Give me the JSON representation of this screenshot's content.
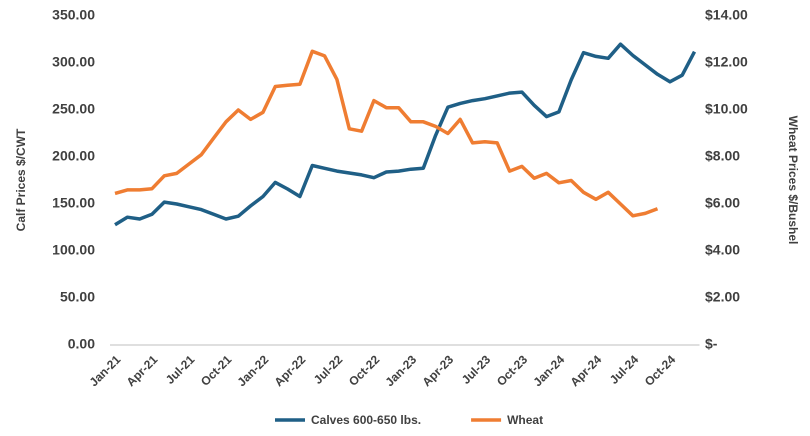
{
  "chart_data": {
    "type": "line",
    "y_label": "Calf Prices $/CWT",
    "y2_label": "Wheat Prices $/Bushel",
    "categories": [
      "Jan-21",
      null,
      null,
      "Apr-21",
      null,
      null,
      "Jul-21",
      null,
      null,
      "Oct-21",
      null,
      null,
      "Jan-22",
      null,
      null,
      "Apr-22",
      null,
      null,
      "Jul-22",
      null,
      null,
      "Oct-22",
      null,
      null,
      "Jan-23",
      null,
      null,
      "Apr-23",
      null,
      null,
      "Jul-23",
      null,
      null,
      "Oct-23",
      null,
      null,
      "Jan-24",
      null,
      null,
      "Apr-24",
      null,
      null,
      "Jul-24",
      null,
      null,
      "Oct-24",
      null,
      null
    ],
    "series": [
      {
        "name": "Calves 600-650 lbs.",
        "color": "#1f5f86",
        "axis": "y",
        "values": [
          128,
          136,
          134,
          139,
          152,
          150,
          147,
          144,
          139,
          134,
          137,
          148,
          158,
          173,
          166,
          158,
          191,
          188,
          185,
          183,
          181,
          178,
          184,
          185,
          187,
          188,
          223,
          253,
          257,
          260,
          262,
          265,
          268,
          269,
          255,
          243,
          248,
          282,
          311,
          307,
          305,
          320,
          308,
          298,
          288,
          280,
          287,
          312
        ]
      },
      {
        "name": "Wheat",
        "color": "#ef7d32",
        "axis": "y2",
        "values": [
          6.45,
          6.6,
          6.6,
          6.65,
          7.2,
          7.3,
          7.7,
          8.1,
          8.8,
          9.5,
          10.0,
          9.6,
          9.9,
          11.0,
          11.05,
          11.1,
          12.5,
          12.3,
          11.3,
          9.2,
          9.1,
          10.4,
          10.1,
          10.1,
          9.5,
          9.5,
          9.3,
          9.0,
          9.6,
          8.6,
          8.65,
          8.6,
          7.4,
          7.6,
          7.1,
          7.3,
          6.9,
          7.0,
          6.5,
          6.2,
          6.5,
          6.0,
          5.5,
          5.6,
          5.8,
          null,
          null,
          null
        ]
      }
    ],
    "ylim": [
      0,
      350
    ],
    "yticks": [
      {
        "value": 0,
        "label": "0.00"
      },
      {
        "value": 50,
        "label": "50.00"
      },
      {
        "value": 100,
        "label": "100.00"
      },
      {
        "value": 150,
        "label": "150.00"
      },
      {
        "value": 200,
        "label": "200.00"
      },
      {
        "value": 250,
        "label": "250.00"
      },
      {
        "value": 300,
        "label": "300.00"
      },
      {
        "value": 350,
        "label": "350.00"
      }
    ],
    "y2lim": [
      0,
      14
    ],
    "y2ticks": [
      {
        "value": 0,
        "label": "$-"
      },
      {
        "value": 2,
        "label": "$2.00"
      },
      {
        "value": 4,
        "label": "$4.00"
      },
      {
        "value": 6,
        "label": "$6.00"
      },
      {
        "value": 8,
        "label": "$8.00"
      },
      {
        "value": 10,
        "label": "$10.00"
      },
      {
        "value": 12,
        "label": "$12.00"
      },
      {
        "value": 14,
        "label": "$14.00"
      }
    ],
    "grid": false,
    "legend": "bottom"
  }
}
